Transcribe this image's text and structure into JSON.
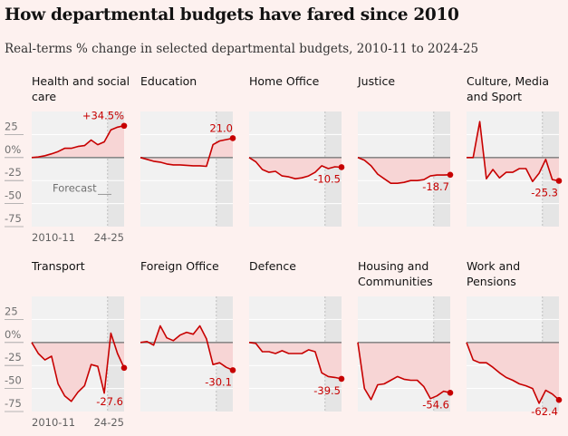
{
  "title": "How departmental budgets have fared since 2010",
  "subtitle": "Real-terms % change in selected departmental budgets, 2010-11 to 2024-25",
  "chart_data": {
    "type": "line",
    "layout": "small-multiples",
    "x_start_label": "2010-11",
    "x_end_label": "24-25",
    "forecast_label": "Forecast",
    "y_ticks": [
      "25",
      "0%",
      "-25",
      "-50",
      "-75"
    ],
    "ylim": [
      -75,
      50
    ],
    "colors": {
      "line": "#c70000",
      "fill": "#f7d5d5",
      "plot_bg": "#f1f1f1",
      "forecast_bg": "#e5e5e5",
      "zero_line": "#8a8a8a"
    },
    "panels": [
      {
        "name": "Health and social care",
        "end_label": "+34.5%",
        "values": [
          0,
          0.6,
          2,
          4,
          6.5,
          10,
          10,
          12,
          13,
          19,
          14,
          17,
          30,
          33,
          34.5
        ]
      },
      {
        "name": "Education",
        "end_label": "21.0",
        "values": [
          0,
          -2,
          -4,
          -5,
          -7,
          -8,
          -8,
          -8.5,
          -9,
          -9,
          -9.5,
          14,
          18,
          19.5,
          21
        ]
      },
      {
        "name": "Home Office",
        "end_label": "-10.5",
        "values": [
          0,
          -4.5,
          -13,
          -16,
          -15,
          -20,
          -21,
          -23,
          -22,
          -20,
          -16,
          -9,
          -12,
          -10,
          -10.5
        ]
      },
      {
        "name": "Justice",
        "end_label": "-18.7",
        "values": [
          0,
          -3,
          -9,
          -18,
          -23,
          -28,
          -28,
          -27,
          -25,
          -25,
          -24,
          -20,
          -19,
          -19,
          -18.7
        ]
      },
      {
        "name": "Culture, Media and Sport",
        "end_label": "-25.3",
        "values": [
          0,
          0,
          39,
          -23,
          -13,
          -22,
          -16,
          -16,
          -12,
          -12,
          -26,
          -17,
          -2,
          -24,
          -25.3
        ]
      },
      {
        "name": "Transport",
        "end_label": "-27.6",
        "values": [
          0,
          -12,
          -19,
          -15,
          -45,
          -58,
          -64,
          -54,
          -47,
          -24,
          -26,
          -55,
          10,
          -12,
          -27.6
        ]
      },
      {
        "name": "Foreign Office",
        "end_label": "-30.1",
        "values": [
          0,
          1,
          -3,
          18,
          5,
          2,
          8,
          11,
          9,
          18,
          4,
          -24,
          -22,
          -27,
          -30.1
        ]
      },
      {
        "name": "Defence",
        "end_label": "-39.5",
        "values": [
          0,
          -1,
          -10,
          -10,
          -12,
          -9,
          -12,
          -12,
          -12,
          -8,
          -10,
          -33,
          -37,
          -38,
          -39.5
        ]
      },
      {
        "name": "Housing and Communities",
        "end_label": "-54.6",
        "values": [
          0,
          -50,
          -62,
          -46,
          -45,
          -41,
          -37,
          -40,
          -41,
          -41,
          -48,
          -61,
          -58,
          -53,
          -54.6
        ]
      },
      {
        "name": "Work and Pensions",
        "end_label": "-62.4",
        "values": [
          0,
          -19,
          -22,
          -22,
          -27,
          -33,
          -38,
          -41,
          -45,
          -47,
          -50,
          -66,
          -52,
          -56,
          -62.4
        ]
      }
    ]
  }
}
